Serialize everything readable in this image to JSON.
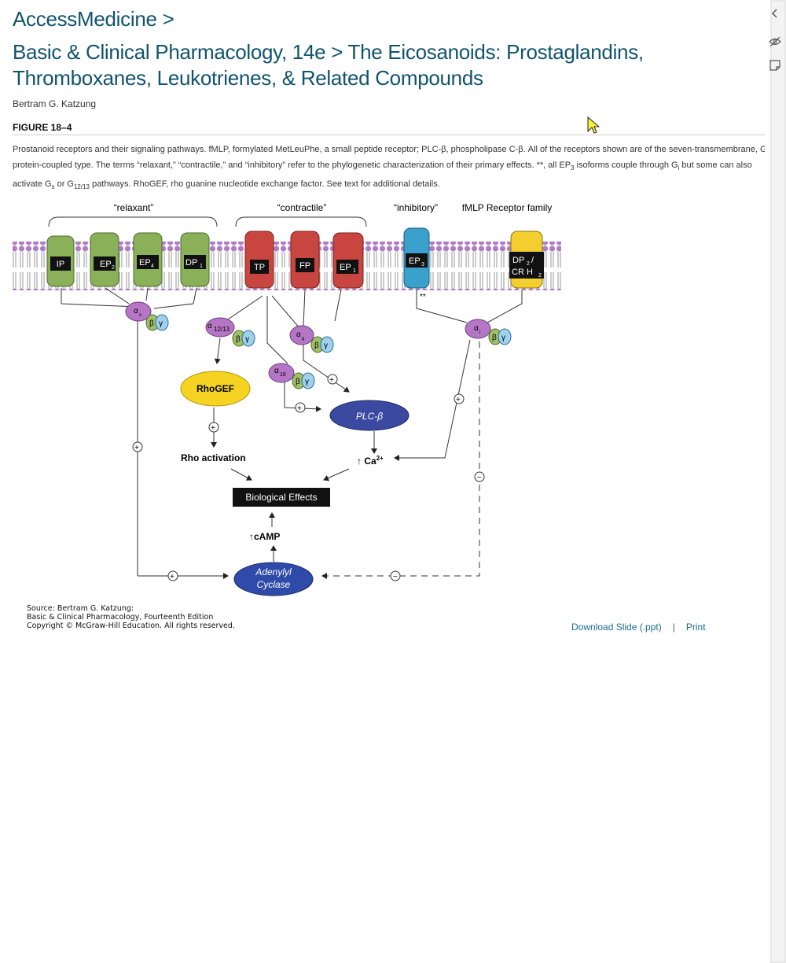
{
  "breadcrumb": {
    "site": "AccessMedicine >"
  },
  "page": {
    "title": "Basic & Clinical Pharmacology, 14e > The Eicosanoids: Prostaglandins, Thromboxanes, Leukotrienes, & Related Compounds",
    "author": "Bertram G. Katzung"
  },
  "figure": {
    "label": "FIGURE 18–4",
    "caption": {
      "part1": "Prostanoid receptors and their signaling pathways. fMLP, formylated MetLeuPhe, a small peptide receptor; PLC-β, phospholipase C-β. All of the receptors shown are of the seven-transmembrane, G protein-coupled type. The terms “relaxant,” “contractile,” and “inhibitory” refer to the phylogenetic characterization of their primary effects. **, all EP",
      "sub_ep3": "3",
      "part2": " isoforms couple through G",
      "sub_gi": "i",
      "part3": " but some can also activate G",
      "sub_gs": "s",
      "part4": " or G",
      "sub_g1213": "12/13",
      "part5": " pathways. RhoGEF, rho guanine nucleotide exchange factor. See text for additional details."
    },
    "diagram": {
      "groups": {
        "relaxant": "“relaxant”",
        "contractile": "“contractile”",
        "inhibitory": "“inhibitory”",
        "fmlp": "fMLP Receptor family"
      },
      "receptors": {
        "ip": "IP",
        "ep2": "EP",
        "ep2_sub": "2",
        "ep4": "EP",
        "ep4_sub": "4",
        "dp1": "DP",
        "dp1_sub": "1",
        "tp": "TP",
        "fp": "FP",
        "ep1": "EP",
        "ep1_sub": "1",
        "ep3": "EP",
        "ep3_sub": "3",
        "dp2_line1": "DP",
        "dp2_sub": "2",
        "dp2_slash": "/",
        "dp2_line2": "CR H",
        "dp2_sub2": "2"
      },
      "gproteins": {
        "as": "α",
        "as_sub": "s",
        "a1213": "α",
        "a1213_sub": "12/13",
        "aq": "α",
        "aq_sub": "q",
        "a16": "α",
        "a16_sub": "16",
        "ai": "α",
        "ai_sub": "i",
        "beta": "β",
        "gamma": "γ"
      },
      "nodes": {
        "rhogef": "RhoGEF",
        "plc": "PLC-β",
        "rho_activation": "Rho activation",
        "ca": "Ca",
        "ca_sup": "2+",
        "up_arrow": "↑",
        "bio_effects": "Biological Effects",
        "camp": "cAMP",
        "adenylyl1": "Adenylyl",
        "adenylyl2": "Cyclase",
        "stars": "**",
        "plus": "+",
        "minus": "−"
      }
    },
    "source": {
      "line1": "Source: Bertram G. Katzung:",
      "line2": "Basic & Clinical Pharmacology, Fourteenth Edition",
      "line3": "Copyright © McGraw-Hill Education. All rights reserved."
    }
  },
  "actions": {
    "download": "Download Slide (.ppt)",
    "separator": "|",
    "print": "Print"
  },
  "colors": {
    "heading": "#11536e",
    "link": "#1b6a91",
    "relaxant": "#8bb05a",
    "contractile": "#c9453f",
    "inhibitory": "#3aa0cc",
    "fmlp": "#f2cf2f",
    "galpha": "#b676c6",
    "plc": "#3b4aa0"
  }
}
